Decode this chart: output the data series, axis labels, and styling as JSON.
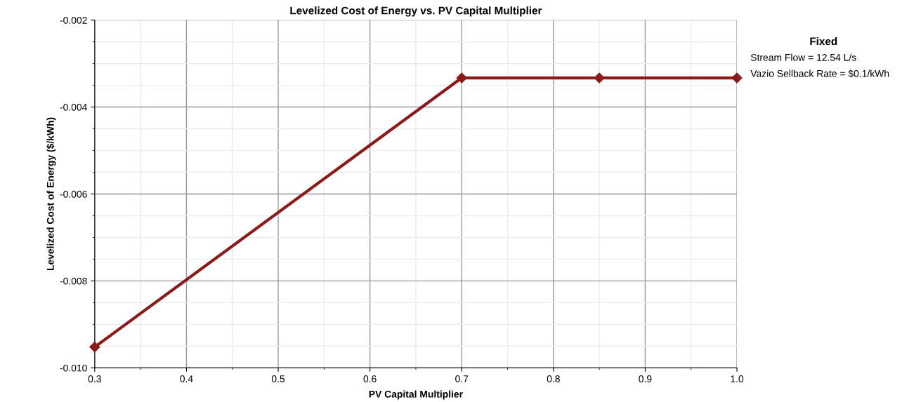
{
  "chart_data": {
    "type": "line",
    "title": "Levelized Cost of Energy vs. PV Capital Multiplier",
    "xlabel": "PV Capital Multiplier",
    "ylabel": "Levelized Cost of Energy ($/kWh)",
    "x": [
      0.3,
      0.7,
      0.85,
      1.0
    ],
    "series": [
      {
        "color": "#8b1a1a",
        "values": [
          -0.00952,
          -0.00333,
          -0.00333,
          -0.00333
        ]
      }
    ],
    "xlim": [
      0.3,
      1.0
    ],
    "xticks": [
      {
        "value": 0.3,
        "label": "0.3"
      },
      {
        "value": 0.4,
        "label": "0.4"
      },
      {
        "value": 0.5,
        "label": "0.5"
      },
      {
        "value": 0.6,
        "label": "0.6"
      },
      {
        "value": 0.7,
        "label": "0.7"
      },
      {
        "value": 0.8,
        "label": "0.8"
      },
      {
        "value": 0.9,
        "label": "0.9"
      },
      {
        "value": 1.0,
        "label": "1.0"
      }
    ],
    "ylim": [
      -0.01,
      -0.002
    ],
    "yticks": [
      {
        "value": -0.01,
        "label": "-0.010"
      },
      {
        "value": -0.008,
        "label": "-0.008"
      },
      {
        "value": -0.006,
        "label": "-0.006"
      },
      {
        "value": -0.004,
        "label": "-0.004"
      },
      {
        "value": -0.002,
        "label": "-0.002"
      }
    ],
    "grid": true,
    "marker": "diamond",
    "line_style": "solid",
    "annotations": [
      "Fixed",
      "Stream Flow = 12.54 L/s",
      "Vazio Sellback Rate = $0.1/kWh"
    ]
  }
}
